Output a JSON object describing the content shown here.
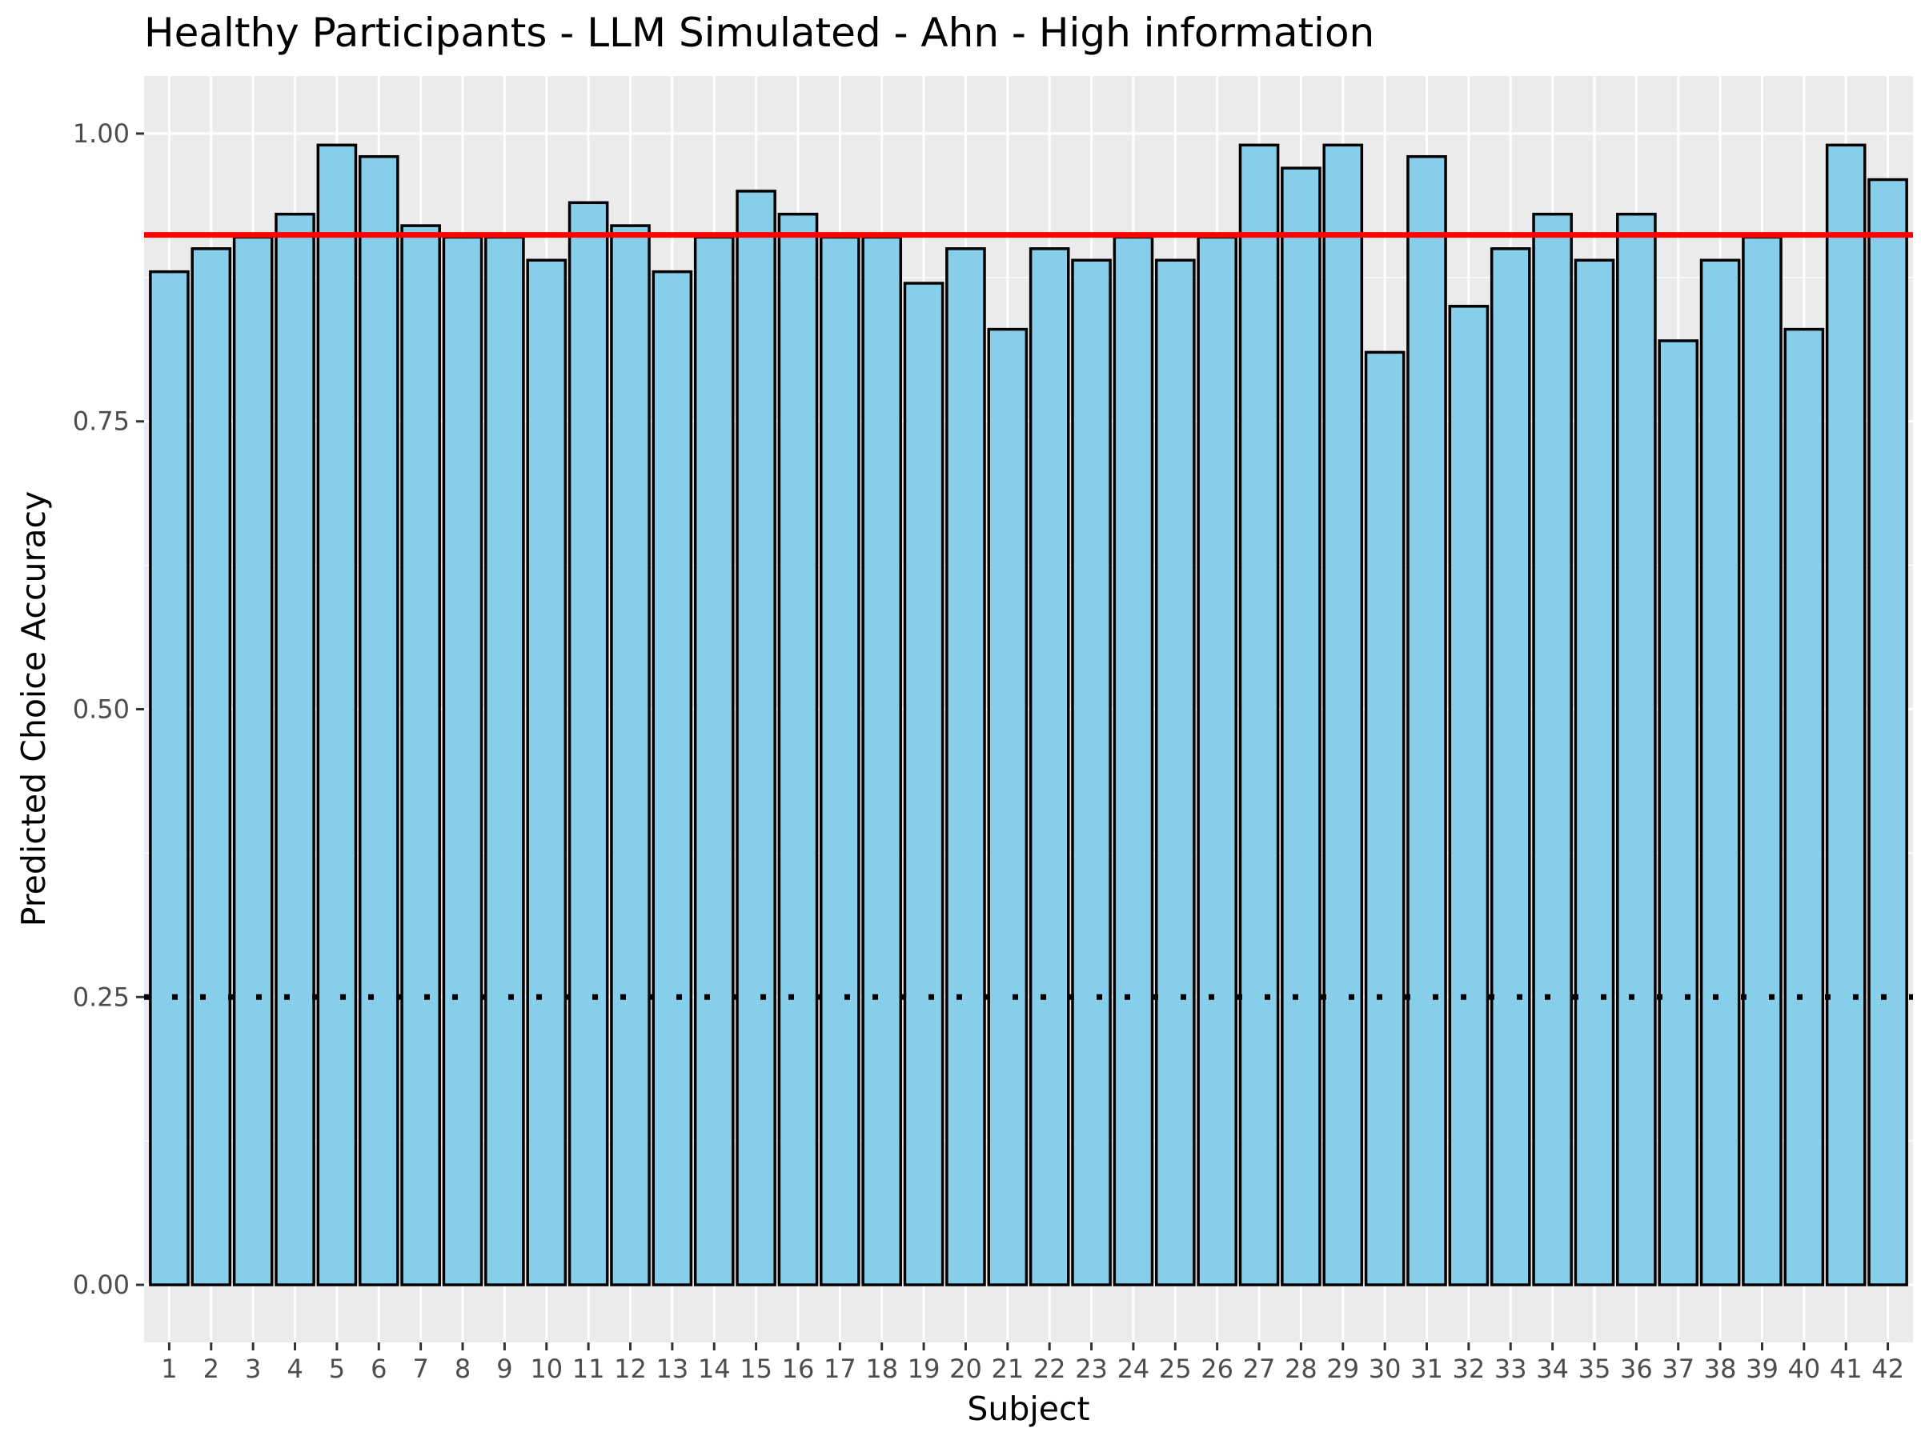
{
  "chart_data": {
    "type": "bar",
    "title": "Healthy Participants - LLM Simulated - Ahn - High information",
    "xlabel": "Subject",
    "ylabel": "Predicted Choice Accuracy",
    "categories": [
      "1",
      "2",
      "3",
      "4",
      "5",
      "6",
      "7",
      "8",
      "9",
      "10",
      "11",
      "12",
      "13",
      "14",
      "15",
      "16",
      "17",
      "18",
      "19",
      "20",
      "21",
      "22",
      "23",
      "24",
      "25",
      "26",
      "27",
      "28",
      "29",
      "30",
      "31",
      "32",
      "33",
      "34",
      "35",
      "36",
      "37",
      "38",
      "39",
      "40",
      "41",
      "42"
    ],
    "values": [
      0.88,
      0.9,
      0.91,
      0.93,
      0.99,
      0.98,
      0.92,
      0.91,
      0.91,
      0.89,
      0.94,
      0.92,
      0.88,
      0.91,
      0.95,
      0.93,
      0.91,
      0.91,
      0.87,
      0.9,
      0.83,
      0.9,
      0.89,
      0.91,
      0.89,
      0.91,
      0.99,
      0.97,
      0.99,
      0.81,
      0.98,
      0.85,
      0.9,
      0.93,
      0.89,
      0.93,
      0.82,
      0.89,
      0.91,
      0.83,
      0.99,
      0.96
    ],
    "ylim": [
      -0.05,
      1.05
    ],
    "yticks": [
      0.0,
      0.25,
      0.5,
      0.75,
      1.0
    ],
    "ytick_labels": [
      "0.00",
      "0.25",
      "0.50",
      "0.75",
      "1.00"
    ],
    "reference_lines": [
      {
        "value": 0.912,
        "style": "solid",
        "color": "#ff0000"
      },
      {
        "value": 0.25,
        "style": "dotted",
        "color": "#000000"
      }
    ],
    "bar_fill": "#87ceeb",
    "bar_outline": "#000000",
    "panel_background": "#ebebeb",
    "grid": true,
    "legend": "none"
  }
}
